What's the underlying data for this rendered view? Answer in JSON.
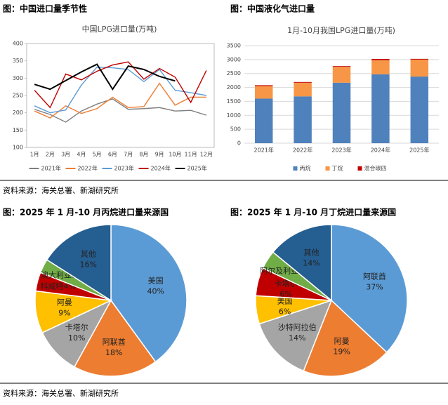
{
  "captions": [
    "图：中国进口量季节性",
    "图：中国液化气进口量",
    "图：2025 年 1 月-10 月丙烷进口量来源国",
    "图：2025 年 1 月-10 月丁烷进口量来源国"
  ],
  "sources": [
    "资料来源：海关总署、新湖研究所",
    "资料来源：海关总署、新湖研究所"
  ],
  "chart_data": [
    {
      "type": "line",
      "title": "中国LPG进口量(万吨)",
      "categories": [
        "1月",
        "2月",
        "3月",
        "4月",
        "5月",
        "6月",
        "7月",
        "8月",
        "9月",
        "10月",
        "11月",
        "12月"
      ],
      "ylim": [
        100,
        400
      ],
      "yticks": [
        100,
        150,
        200,
        250,
        300,
        350,
        400
      ],
      "grid": false,
      "legend": "bottom",
      "series": [
        {
          "name": "2021年",
          "color": "#7f7f7f",
          "values": [
            210,
            195,
            173,
            205,
            225,
            240,
            210,
            212,
            215,
            205,
            207,
            193
          ]
        },
        {
          "name": "2022年",
          "color": "#ed7d31",
          "values": [
            205,
            185,
            220,
            198,
            212,
            245,
            215,
            218,
            285,
            222,
            245,
            245
          ]
        },
        {
          "name": "2023年",
          "color": "#5b9bd5",
          "values": [
            220,
            200,
            208,
            280,
            332,
            330,
            325,
            290,
            325,
            265,
            258,
            250
          ]
        },
        {
          "name": "2024年",
          "color": "#c00000",
          "values": [
            265,
            215,
            312,
            295,
            320,
            338,
            347,
            297,
            328,
            303,
            230,
            322
          ]
        },
        {
          "name": "2025年",
          "color": "#000000",
          "values": [
            282,
            268,
            293,
            318,
            340,
            268,
            335,
            325,
            305,
            292,
            null,
            null
          ]
        }
      ]
    },
    {
      "type": "stacked_bar",
      "title": "1月-10月我国LPG进口量(万吨)",
      "categories": [
        "2021年",
        "2022年",
        "2023年",
        "2024年",
        "2025年"
      ],
      "ylim": [
        0,
        3500
      ],
      "yticks": [
        0,
        500,
        1000,
        1500,
        2000,
        2500,
        3000,
        3500
      ],
      "grid": true,
      "legend": "bottom",
      "series": [
        {
          "name": "丙烷",
          "color": "#4f81bd",
          "values": [
            1600,
            1680,
            2170,
            2470,
            2390
          ]
        },
        {
          "name": "丁烷",
          "color": "#f79646",
          "values": [
            450,
            490,
            570,
            510,
            610
          ]
        },
        {
          "name": "混合碳四",
          "color": "#c00000",
          "values": [
            30,
            25,
            25,
            40,
            25
          ]
        }
      ]
    },
    {
      "type": "pie",
      "categories": [
        "美国",
        "阿联酋",
        "卡塔尔",
        "阿曼",
        "科威特",
        "澳大利亚",
        "其他"
      ],
      "values": [
        40,
        18,
        10,
        9,
        4,
        3,
        16
      ],
      "value_labels": [
        "40%",
        "18%",
        "10%",
        "9%",
        "4%",
        "3%",
        "16%"
      ],
      "colors": [
        "#5b9bd5",
        "#ed7d31",
        "#a5a5a5",
        "#ffc000",
        "#c00000",
        "#70ad47",
        "#255e91"
      ]
    },
    {
      "type": "pie",
      "categories": [
        "阿联酋",
        "阿曼",
        "沙特阿拉伯",
        "美国",
        "卡塔尔",
        "阿尔及利亚",
        "其他"
      ],
      "values": [
        37,
        19,
        14,
        6,
        6,
        4,
        14
      ],
      "value_labels": [
        "37%",
        "19%",
        "14%",
        "6%",
        "6%",
        "4%",
        "14%"
      ],
      "colors": [
        "#5b9bd5",
        "#ed7d31",
        "#a5a5a5",
        "#ffc000",
        "#c00000",
        "#70ad47",
        "#255e91"
      ]
    }
  ]
}
